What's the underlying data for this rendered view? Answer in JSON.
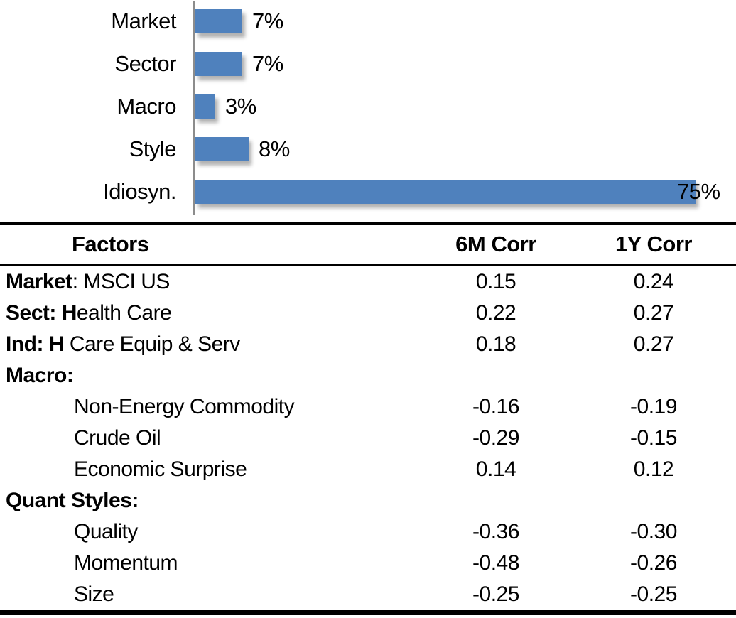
{
  "chart_data": {
    "type": "bar",
    "orientation": "horizontal",
    "title": "",
    "xlabel": "",
    "ylabel": "",
    "categories": [
      "Market",
      "Sector",
      "Macro",
      "Style",
      "Idiosyn."
    ],
    "values": [
      7,
      7,
      3,
      8,
      75
    ],
    "value_labels": [
      "7%",
      "7%",
      "3%",
      "8%",
      "75%"
    ],
    "label_inside_bar": [
      false,
      false,
      false,
      false,
      true
    ],
    "xlim": [
      0,
      81
    ],
    "grid": false,
    "legend": "none",
    "bar_color": "#4F81BD",
    "axis_color": "#8C8C8C"
  },
  "table": {
    "columns": [
      "Factors",
      "6M Corr",
      "1Y Corr"
    ],
    "rows": [
      {
        "label": "Market: MSCI US",
        "bold": "Market",
        "indent": false,
        "corr_6m": "0.15",
        "corr_1y": "0.24"
      },
      {
        "label": "Sect: Health Care",
        "bold": "Sect: H",
        "indent": false,
        "corr_6m": "0.22",
        "corr_1y": "0.27"
      },
      {
        "label": "Ind: H Care Equip & Serv",
        "bold": "Ind: H",
        "indent": false,
        "corr_6m": "0.18",
        "corr_1y": "0.27"
      },
      {
        "label": "Macro:",
        "bold": "Macro:",
        "indent": false,
        "corr_6m": "",
        "corr_1y": ""
      },
      {
        "label": "Non-Energy Commodity",
        "bold": "",
        "indent": true,
        "corr_6m": "-0.16",
        "corr_1y": "-0.19"
      },
      {
        "label": "Crude Oil",
        "bold": "",
        "indent": true,
        "corr_6m": "-0.29",
        "corr_1y": "-0.15"
      },
      {
        "label": "Economic Surprise",
        "bold": "",
        "indent": true,
        "corr_6m": "0.14",
        "corr_1y": "0.12"
      },
      {
        "label": "Quant Styles:",
        "bold": "Quant Styles:",
        "indent": false,
        "corr_6m": "",
        "corr_1y": ""
      },
      {
        "label": "Quality",
        "bold": "",
        "indent": true,
        "corr_6m": "-0.36",
        "corr_1y": "-0.30"
      },
      {
        "label": "Momentum",
        "bold": "",
        "indent": true,
        "corr_6m": "-0.48",
        "corr_1y": "-0.26"
      },
      {
        "label": "Size",
        "bold": "",
        "indent": true,
        "corr_6m": "-0.25",
        "corr_1y": "-0.25"
      }
    ]
  }
}
